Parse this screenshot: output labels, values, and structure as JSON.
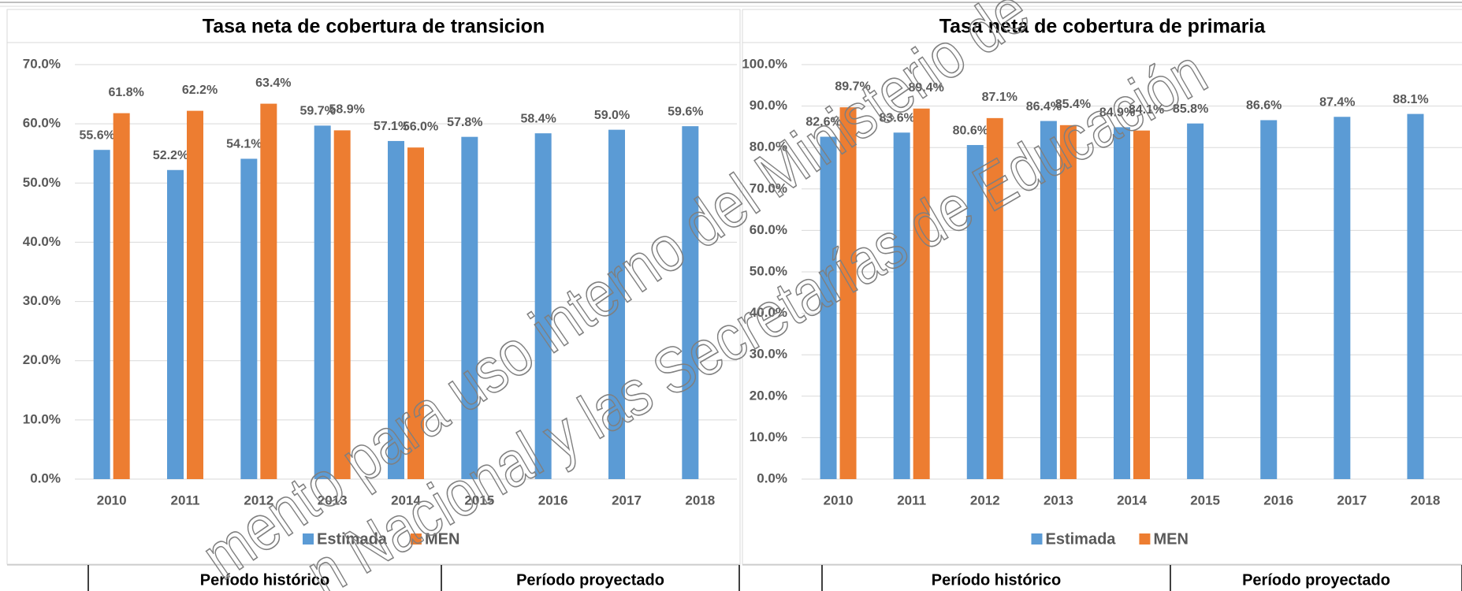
{
  "chart_data": [
    {
      "type": "bar",
      "title": "Tasa neta de cobertura de transicion",
      "categories": [
        "2010",
        "2011",
        "2012",
        "2013",
        "2014",
        "2015",
        "2016",
        "2017",
        "2018"
      ],
      "series": [
        {
          "name": "Estimada",
          "color": "#5b9bd5",
          "values": [
            55.6,
            52.2,
            54.1,
            59.7,
            57.1,
            57.8,
            58.4,
            59.0,
            59.6
          ],
          "value_labels": [
            "55.6%",
            "52.2%",
            "54.1%",
            "59.7%",
            "57.1%",
            "57.8%",
            "58.4%",
            "59.0%",
            "59.6%"
          ]
        },
        {
          "name": "MEN",
          "color": "#ed7d31",
          "values": [
            61.8,
            62.2,
            63.4,
            58.9,
            56.0,
            null,
            null,
            null,
            null
          ],
          "value_labels": [
            "61.8%",
            "62.2%",
            "63.4%",
            "58.9%",
            "56.0%",
            null,
            null,
            null,
            null
          ]
        }
      ],
      "ylim": [
        0,
        70
      ],
      "yticks": [
        {
          "value": 0,
          "label": "0.0%"
        },
        {
          "value": 10,
          "label": "10.0%"
        },
        {
          "value": 20,
          "label": "20.0%"
        },
        {
          "value": 30,
          "label": "30.0%"
        },
        {
          "value": 40,
          "label": "40.0%"
        },
        {
          "value": 50,
          "label": "50.0%"
        },
        {
          "value": 60,
          "label": "60.0%"
        },
        {
          "value": 70,
          "label": "70.0%"
        }
      ],
      "grid": true,
      "legend": "bottom",
      "periods": [
        "Período histórico",
        "Período proyectado"
      ]
    },
    {
      "type": "bar",
      "title": "Tasa neta de cobertura de primaria",
      "categories": [
        "2010",
        "2011",
        "2012",
        "2013",
        "2014",
        "2015",
        "2016",
        "2017",
        "2018"
      ],
      "series": [
        {
          "name": "Estimada",
          "color": "#5b9bd5",
          "values": [
            82.6,
            83.6,
            80.6,
            86.4,
            84.9,
            85.8,
            86.6,
            87.4,
            88.1
          ],
          "value_labels": [
            "82.6%",
            "83.6%",
            "80.6%",
            "86.4%",
            "84.9%",
            "85.8%",
            "86.6%",
            "87.4%",
            "88.1%"
          ]
        },
        {
          "name": "MEN",
          "color": "#ed7d31",
          "values": [
            89.7,
            89.4,
            87.1,
            85.4,
            84.1,
            null,
            null,
            null,
            null
          ],
          "value_labels": [
            "89.7%",
            "89.4%",
            "87.1%",
            "85.4%",
            "84.1%",
            null,
            null,
            null,
            null
          ]
        }
      ],
      "ylim": [
        0,
        100
      ],
      "yticks": [
        {
          "value": 0,
          "label": "0.0%"
        },
        {
          "value": 10,
          "label": "10.0%"
        },
        {
          "value": 20,
          "label": "20.0%"
        },
        {
          "value": 30,
          "label": "30.0%"
        },
        {
          "value": 40,
          "label": "40.0%"
        },
        {
          "value": 50,
          "label": "50.0%"
        },
        {
          "value": 60,
          "label": "60.0%"
        },
        {
          "value": 70,
          "label": "70.0%"
        },
        {
          "value": 80,
          "label": "80.0%"
        },
        {
          "value": 90,
          "label": "90.0%"
        },
        {
          "value": 100,
          "label": "100.0%"
        }
      ],
      "grid": true,
      "legend": "bottom",
      "periods": [
        "Período histórico",
        "Período proyectado"
      ]
    }
  ],
  "watermark": [
    "mento para uso interno del Ministerio de",
    "n Nacional y las Secretarías de Educación"
  ]
}
